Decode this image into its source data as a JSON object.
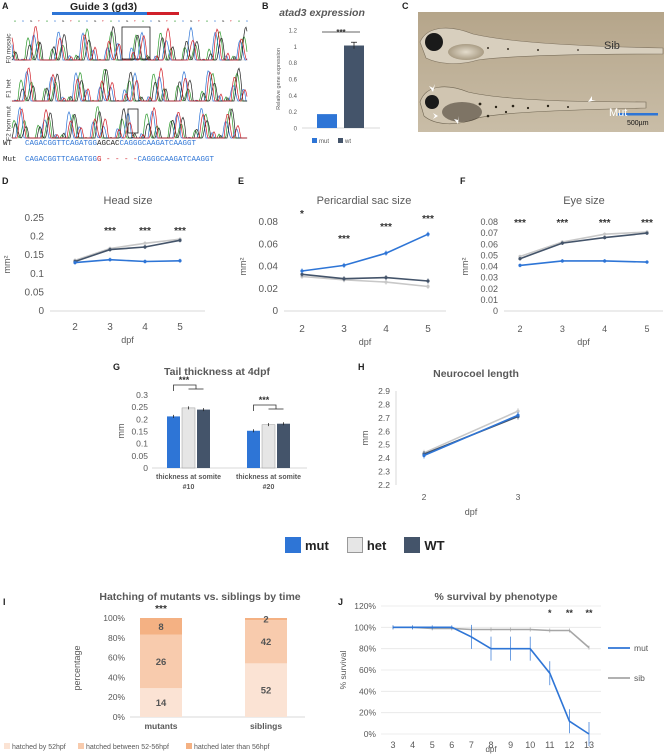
{
  "panel_a": {
    "letter": "A",
    "title": "Guide 3 (gd3)",
    "track_labels": [
      "F0 mosaic",
      "F1 het",
      "F2 hom mut"
    ],
    "wt_label": "WT",
    "mut_label": "Mut",
    "wt_blue1": "CAGACGGTTCAGATGG",
    "wt_black": "AGCAC",
    "wt_blue2": "CAGGGCAAGATCAAGGT",
    "mut_blue1": "CAGACGGTTCAGATGG",
    "mut_red": "G - - - -",
    "mut_blue2": "CAGGGCAAGATCAAGGT",
    "colors": {
      "blue": "#2e75d6",
      "red": "#d0202a",
      "black": "#222222",
      "green": "#2d9a2d"
    }
  },
  "panel_c": {
    "letter": "C",
    "sib_label": "Sib",
    "mut_label": "Mut",
    "scale_label": "500µm"
  },
  "legend_main": {
    "items": [
      {
        "label": "mut",
        "color": "#2e75d6"
      },
      {
        "label": "het",
        "color": "#e6e6e6"
      },
      {
        "label": "WT",
        "color": "#44546a"
      }
    ]
  },
  "chart_data": [
    {
      "id": "B",
      "letter": "B",
      "type": "bar",
      "title": "atad3 expression",
      "ylabel": "Relative gene expression",
      "categories": [
        "mut",
        "wt"
      ],
      "values": [
        0.17,
        1.01
      ],
      "errors": [
        0.0,
        0.04
      ],
      "colors": [
        "#2e75d6",
        "#44546a"
      ],
      "ylim": [
        0,
        1.2
      ],
      "yticks": [
        "0",
        "0.2",
        "0.4",
        "0.6",
        "0.8",
        "1",
        "1.2"
      ],
      "significance": "***",
      "legend": [
        "mut",
        "wt"
      ]
    },
    {
      "id": "D",
      "letter": "D",
      "type": "line",
      "title": "Head size",
      "xlabel": "dpf",
      "ylabel": "mm²",
      "x": [
        "2",
        "3",
        "4",
        "5"
      ],
      "ylim": [
        0,
        0.25
      ],
      "yticks": [
        "0",
        "0.05",
        "0.1",
        "0.15",
        "0.2",
        "0.25"
      ],
      "series": [
        {
          "color": "#2e75d6",
          "values": [
            0.13,
            0.138,
            0.133,
            0.135
          ]
        },
        {
          "color": "#44546a",
          "values": [
            0.133,
            0.165,
            0.172,
            0.19
          ]
        },
        {
          "color": "#c8c8c8",
          "values": [
            0.136,
            0.168,
            0.182,
            0.193
          ]
        }
      ],
      "significance": [
        "",
        "***",
        "***",
        "***"
      ]
    },
    {
      "id": "E",
      "letter": "E",
      "type": "line",
      "title": "Pericardial sac size",
      "xlabel": "dpf",
      "ylabel": "mm²",
      "x": [
        "2",
        "3",
        "4",
        "5"
      ],
      "ylim": [
        0,
        0.08
      ],
      "yticks": [
        "0",
        "0.02",
        "0.04",
        "0.06",
        "0.08"
      ],
      "series": [
        {
          "color": "#2e75d6",
          "values": [
            0.036,
            0.041,
            0.052,
            0.069
          ]
        },
        {
          "color": "#44546a",
          "values": [
            0.033,
            0.029,
            0.03,
            0.027
          ]
        },
        {
          "color": "#c8c8c8",
          "values": [
            0.031,
            0.028,
            0.026,
            0.022
          ]
        }
      ],
      "significance": [
        "*",
        "***",
        "***",
        "***"
      ]
    },
    {
      "id": "F",
      "letter": "F",
      "type": "line",
      "title": "Eye size",
      "xlabel": "dpf",
      "ylabel": "mm²",
      "x": [
        "2",
        "3",
        "4",
        "5"
      ],
      "ylim": [
        0,
        0.08
      ],
      "yticks": [
        "0",
        "0.01",
        "0.02",
        "0.03",
        "0.04",
        "0.05",
        "0.06",
        "0.07",
        "0.08"
      ],
      "series": [
        {
          "color": "#2e75d6",
          "values": [
            0.041,
            0.045,
            0.045,
            0.044
          ]
        },
        {
          "color": "#44546a",
          "values": [
            0.047,
            0.061,
            0.066,
            0.07
          ]
        },
        {
          "color": "#c8c8c8",
          "values": [
            0.049,
            0.062,
            0.069,
            0.071
          ]
        }
      ],
      "significance": [
        "***",
        "***",
        "***",
        "***"
      ]
    },
    {
      "id": "G",
      "letter": "G",
      "type": "bar",
      "title": "Tail thickness at 4dpf",
      "ylabel": "mm",
      "categories": [
        "thickness at somite #10",
        "thickness at somite #20"
      ],
      "series": [
        {
          "color": "#2e75d6",
          "values": [
            0.212,
            0.153
          ]
        },
        {
          "color": "#e6e6e6",
          "values": [
            0.247,
            0.178
          ]
        },
        {
          "color": "#44546a",
          "values": [
            0.24,
            0.182
          ]
        }
      ],
      "ylim": [
        0,
        0.3
      ],
      "yticks": [
        "0",
        "0.05",
        "0.1",
        "0.15",
        "0.2",
        "0.25",
        "0.3"
      ],
      "significance": [
        "***",
        "***"
      ]
    },
    {
      "id": "H",
      "letter": "H",
      "type": "line",
      "title": "Neurocoel length",
      "xlabel": "dpf",
      "ylabel": "mm",
      "x": [
        "2",
        "3"
      ],
      "ylim": [
        2.2,
        2.9
      ],
      "yticks": [
        "2.2",
        "2.3",
        "2.4",
        "2.5",
        "2.6",
        "2.7",
        "2.8",
        "2.9"
      ],
      "series": [
        {
          "color": "#2e75d6",
          "values": [
            2.42,
            2.72
          ]
        },
        {
          "color": "#44546a",
          "values": [
            2.43,
            2.71
          ]
        },
        {
          "color": "#c8c8c8",
          "values": [
            2.44,
            2.75
          ]
        }
      ]
    },
    {
      "id": "I",
      "letter": "I",
      "type": "bar",
      "stacked": true,
      "percent": true,
      "title": "Hatching of mutants vs. siblings by time",
      "ylabel": "percentage",
      "categories": [
        "mutants",
        "siblings"
      ],
      "series": [
        {
          "name": "hatched by 52hpf",
          "color": "#fbe3d4",
          "values": [
            14,
            52
          ]
        },
        {
          "name": "hatched between 52-56hpf",
          "color": "#f8cbad",
          "values": [
            26,
            42
          ]
        },
        {
          "name": "hatched later than 56hpf",
          "color": "#f4b183",
          "values": [
            8,
            2
          ]
        }
      ],
      "yticks": [
        "0%",
        "20%",
        "40%",
        "60%",
        "80%",
        "100%"
      ],
      "significance": [
        "***",
        ""
      ]
    },
    {
      "id": "J",
      "letter": "J",
      "type": "line",
      "title": "% survival by phenotype",
      "xlabel": "dpf",
      "ylabel": "% survival",
      "x": [
        "3",
        "4",
        "5",
        "6",
        "7",
        "8",
        "9",
        "10",
        "11",
        "12",
        "13"
      ],
      "ylim": [
        0,
        120
      ],
      "yticks": [
        "0%",
        "20%",
        "40%",
        "60%",
        "80%",
        "100%",
        "120%"
      ],
      "series": [
        {
          "name": "mut",
          "color": "#2e75d6",
          "values": [
            100,
            100,
            100,
            100,
            91,
            80,
            80,
            80,
            57,
            12,
            0
          ]
        },
        {
          "name": "sib",
          "color": "#a6a6a6",
          "values": [
            100,
            100,
            99,
            99,
            98,
            98,
            98,
            98,
            97,
            97,
            81
          ]
        }
      ],
      "significance": [
        "",
        "",
        "",
        "",
        "",
        "",
        "",
        "",
        "*",
        "**",
        "**"
      ]
    }
  ]
}
